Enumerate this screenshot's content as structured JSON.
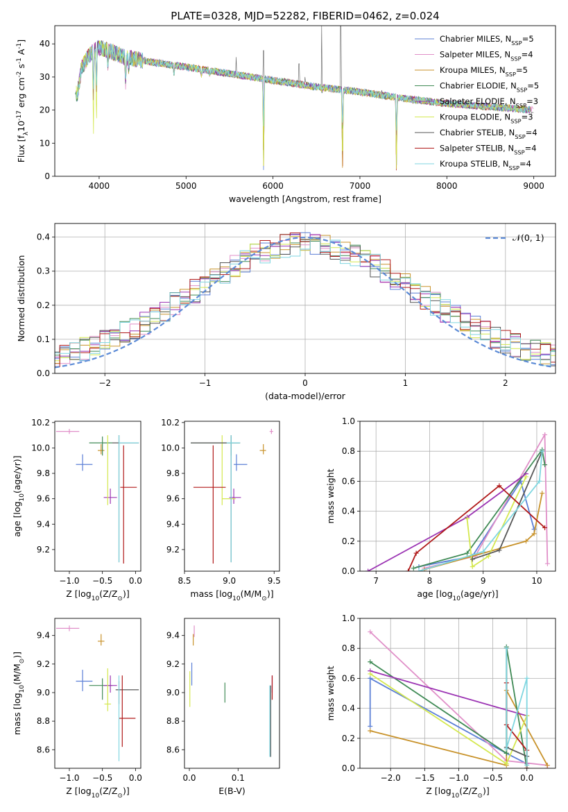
{
  "figure": {
    "title": "PLATE=0328, MJD=52282, FIBERID=0462, z=0.024"
  },
  "series_names": [
    "Chabrier MILES, N$_{SSP}$=5",
    "Salpeter MILES, N$_{SSP}$=4",
    "Kroupa MILES, N$_{SSP}$=5",
    "Chabrier ELODIE, N$_{SSP}$=5",
    "Salpeter ELODIE, N$_{SSP}$=3",
    "Kroupa ELODIE, N$_{SSP}$=3",
    "Chabrier STELIB, N$_{SSP}$=4",
    "Salpeter STELIB, N$_{SSP}$=4",
    "Kroupa STELIB, N$_{SSP}$=4"
  ],
  "series_colors": [
    "#5b7fd6",
    "#e08fc8",
    "#c8922a",
    "#3f8a55",
    "#9b33b3",
    "#d4e84e",
    "#555555",
    "#b01818",
    "#7fd6e0"
  ],
  "chart_data": [
    {
      "id": "spectrum",
      "type": "line",
      "title": "PLATE=0328, MJD=52282, FIBERID=0462, z=0.024",
      "xlabel": "wavelength [Angstrom, rest frame]",
      "ylabel": "Flux [f$_\\lambda$10$^{-17}$ erg cm$^{-2}$ s$^{-1}$ A$^{-1}$]",
      "xlim": [
        3490,
        9250
      ],
      "ylim": [
        0,
        45.5
      ],
      "xticks": [
        4000,
        5000,
        6000,
        7000,
        8000,
        9000
      ],
      "yticks": [
        0,
        10,
        20,
        30,
        40
      ],
      "legend": "top-right",
      "continuum": {
        "x": [
          3750,
          3800,
          3900,
          4000,
          4100,
          4300,
          4600,
          5000,
          5500,
          6000,
          6500,
          7000,
          7500,
          8000,
          8500,
          9000
        ],
        "y": [
          25,
          33,
          37,
          39,
          38,
          36,
          34.5,
          33,
          31,
          29,
          27,
          25.5,
          23.5,
          22,
          21,
          20
        ]
      },
      "absorption_lines": [
        {
          "x": 3934,
          "y": 10
        },
        {
          "x": 3969,
          "y": 12
        },
        {
          "x": 4101,
          "y": 28
        },
        {
          "x": 4304,
          "y": 18
        },
        {
          "x": 4341,
          "y": 27
        },
        {
          "x": 4861,
          "y": 27
        },
        {
          "x": 5176,
          "y": 28
        },
        {
          "x": 5270,
          "y": 29
        },
        {
          "x": 5892,
          "y": 0
        },
        {
          "x": 6563,
          "y": 24
        },
        {
          "x": 6800,
          "y": 0
        },
        {
          "x": 7420,
          "y": 0
        }
      ],
      "emission_spikes": [
        {
          "x": 5577,
          "y": 36
        },
        {
          "x": 5892,
          "y": 38
        },
        {
          "x": 6300,
          "y": 34
        },
        {
          "x": 6370,
          "y": 30
        },
        {
          "x": 6560,
          "y": 45.5
        },
        {
          "x": 6780,
          "y": 45.5
        },
        {
          "x": 7250,
          "y": 26
        },
        {
          "x": 7400,
          "y": 24
        }
      ]
    },
    {
      "id": "residuals",
      "type": "histogram",
      "xlabel": "(data-model)/error",
      "ylabel": "Normed distribution",
      "xlim": [
        -2.5,
        2.5
      ],
      "ylim": [
        0,
        0.44
      ],
      "xticks": [
        -2,
        -1,
        0,
        1,
        2
      ],
      "yticks": [
        0.0,
        0.1,
        0.2,
        0.3,
        0.4
      ],
      "bin_width": 0.1,
      "reference_curve": {
        "name": "$\\mathcal{N}(0,1)$",
        "mean": 0,
        "sigma": 1,
        "style": "dashed"
      },
      "grid": true
    },
    {
      "id": "age_vs_Z",
      "type": "errorbar",
      "xlabel": "Z [log$_{10}$(Z/Z$_\\odot$)]",
      "ylabel": "age  [log$_{10}$(age/yr)]",
      "xlim": [
        -1.22,
        0.08
      ],
      "ylim": [
        9.03,
        10.21
      ],
      "xticks": [
        -1,
        -0.5,
        0
      ],
      "yticks": [
        9.2,
        9.4,
        9.6,
        9.8,
        10.0,
        10.2
      ],
      "points": [
        {
          "series": 0,
          "x": -0.8,
          "y": 9.87,
          "xerr": [
            0.1,
            0.15
          ],
          "yerr": [
            0.05,
            0.08
          ]
        },
        {
          "series": 1,
          "x": -1.0,
          "y": 10.13,
          "xerr": [
            0.2,
            0.15
          ],
          "yerr": [
            0.02,
            0.02
          ]
        },
        {
          "series": 2,
          "x": -0.52,
          "y": 9.98,
          "xerr": [
            0.05,
            0.05
          ],
          "yerr": [
            0.03,
            0.05
          ]
        },
        {
          "series": 3,
          "x": -0.5,
          "y": 10.04,
          "xerr": [
            0.2,
            0.15
          ],
          "yerr": [
            0.1,
            0.05
          ]
        },
        {
          "series": 4,
          "x": -0.38,
          "y": 9.61,
          "xerr": [
            0.1,
            0.1
          ],
          "yerr": [
            0.05,
            0.07
          ]
        },
        {
          "series": 5,
          "x": -0.42,
          "y": 9.6,
          "xerr": [
            0.0,
            0.0
          ],
          "yerr": [
            0.05,
            0.5
          ]
        },
        {
          "series": 6,
          "x": -0.25,
          "y": 10.04,
          "xerr": [
            0.1,
            0.3
          ],
          "yerr": [
            0.94,
            0.06
          ]
        },
        {
          "series": 7,
          "x": -0.18,
          "y": 9.69,
          "xerr": [
            0.05,
            0.2
          ],
          "yerr": [
            0.6,
            0.33
          ]
        },
        {
          "series": 8,
          "x": -0.25,
          "y": 10.04,
          "xerr": [
            0.0,
            0.3
          ],
          "yerr": [
            0.94,
            0.06
          ]
        }
      ]
    },
    {
      "id": "age_vs_mass",
      "type": "errorbar",
      "xlabel": "mass [log$_{10}$(M/M$_\\odot$)]",
      "ylabel": "",
      "xlim": [
        8.5,
        9.56
      ],
      "ylim": [
        9.03,
        10.21
      ],
      "xticks": [
        8.5,
        9.0,
        9.5
      ],
      "yticks": [
        9.2,
        9.4,
        9.6,
        9.8,
        10.0,
        10.2
      ],
      "points": [
        {
          "series": 0,
          "x": 9.08,
          "y": 9.87,
          "xerr": [
            0.03,
            0.12
          ],
          "yerr": [
            0.05,
            0.08
          ]
        },
        {
          "series": 1,
          "x": 9.47,
          "y": 10.13,
          "xerr": [
            0.02,
            0.02
          ],
          "yerr": [
            0.02,
            0.02
          ]
        },
        {
          "series": 2,
          "x": 9.38,
          "y": 9.98,
          "xerr": [
            0.04,
            0.03
          ],
          "yerr": [
            0.03,
            0.05
          ]
        },
        {
          "series": 3,
          "x": 9.02,
          "y": 10.04,
          "xerr": [
            0.45,
            0.1
          ],
          "yerr": [
            0.1,
            0.05
          ]
        },
        {
          "series": 4,
          "x": 9.05,
          "y": 9.61,
          "xerr": [
            0.05,
            0.08
          ],
          "yerr": [
            0.05,
            0.07
          ]
        },
        {
          "series": 5,
          "x": 8.92,
          "y": 9.6,
          "xerr": [
            0.0,
            0.15
          ],
          "yerr": [
            0.05,
            0.5
          ]
        },
        {
          "series": 6,
          "x": 9.02,
          "y": 10.04,
          "xerr": [
            0.45,
            0.1
          ],
          "yerr": [
            0.94,
            0.06
          ]
        },
        {
          "series": 7,
          "x": 8.82,
          "y": 9.69,
          "xerr": [
            0.22,
            0.14
          ],
          "yerr": [
            0.6,
            0.33
          ]
        },
        {
          "series": 8,
          "x": 9.02,
          "y": 10.04,
          "xerr": [
            0.05,
            0.1
          ],
          "yerr": [
            0.94,
            0.06
          ]
        }
      ]
    },
    {
      "id": "weight_vs_age",
      "type": "line",
      "xlabel": "age  [log$_{10}$(age/yr)]",
      "ylabel": "mass weight",
      "xlim": [
        6.7,
        10.35
      ],
      "ylim": [
        0,
        1.0
      ],
      "xticks": [
        7,
        8,
        9,
        10
      ],
      "yticks": [
        0.0,
        0.2,
        0.4,
        0.6,
        0.8,
        1.0
      ],
      "grid": true,
      "series": [
        {
          "series": 0,
          "x": [
            7.8,
            8.8,
            9.7,
            9.95
          ],
          "y": [
            0.03,
            0.1,
            0.6,
            0.28
          ]
        },
        {
          "series": 1,
          "x": [
            7.9,
            8.85,
            10.15,
            10.2
          ],
          "y": [
            0.02,
            0.1,
            0.91,
            0.05
          ]
        },
        {
          "series": 2,
          "x": [
            7.9,
            9.8,
            9.95,
            10.1
          ],
          "y": [
            0.01,
            0.2,
            0.25,
            0.52
          ]
        },
        {
          "series": 3,
          "x": [
            7.7,
            8.7,
            10.1,
            10.15
          ],
          "y": [
            0.02,
            0.12,
            0.81,
            0.71
          ]
        },
        {
          "series": 4,
          "x": [
            6.85,
            8.7,
            9.8
          ],
          "y": [
            0.0,
            0.36,
            0.65
          ]
        },
        {
          "series": 5,
          "x": [
            8.7,
            8.8,
            9.1,
            9.8
          ],
          "y": [
            0.35,
            0.03,
            0.1,
            0.63
          ]
        },
        {
          "series": 6,
          "x": [
            8.8,
            9.3,
            10.1
          ],
          "y": [
            0.08,
            0.14,
            0.8
          ]
        },
        {
          "series": 7,
          "x": [
            7.6,
            7.75,
            9.3,
            10.15
          ],
          "y": [
            0.0,
            0.12,
            0.57,
            0.29
          ]
        },
        {
          "series": 8,
          "x": [
            7.8,
            9.0,
            10.05,
            10.1
          ],
          "y": [
            0.0,
            0.13,
            0.6,
            0.8
          ]
        }
      ]
    },
    {
      "id": "mass_vs_Z",
      "type": "errorbar",
      "xlabel": "Z [log$_{10}$(Z/Z$_\\odot$)]",
      "ylabel": "mass [log$_{10}$(M/M$_\\odot$)]",
      "xlim": [
        -1.22,
        0.08
      ],
      "ylim": [
        8.47,
        9.52
      ],
      "xticks": [
        -1,
        -0.5,
        0
      ],
      "yticks": [
        8.6,
        8.8,
        9.0,
        9.2,
        9.4
      ],
      "points": [
        {
          "series": 0,
          "x": -0.8,
          "y": 9.08,
          "xerr": [
            0.1,
            0.15
          ],
          "yerr": [
            0.07,
            0.08
          ]
        },
        {
          "series": 1,
          "x": -1.0,
          "y": 9.45,
          "xerr": [
            0.2,
            0.15
          ],
          "yerr": [
            0.02,
            0.02
          ]
        },
        {
          "series": 2,
          "x": -0.52,
          "y": 9.36,
          "xerr": [
            0.05,
            0.05
          ],
          "yerr": [
            0.03,
            0.05
          ]
        },
        {
          "series": 3,
          "x": -0.5,
          "y": 9.05,
          "xerr": [
            0.2,
            0.15
          ],
          "yerr": [
            0.1,
            0.05
          ]
        },
        {
          "series": 4,
          "x": -0.38,
          "y": 9.05,
          "xerr": [
            0.1,
            0.1
          ],
          "yerr": [
            0.05,
            0.07
          ]
        },
        {
          "series": 5,
          "x": -0.42,
          "y": 8.92,
          "xerr": [
            0.05,
            0.05
          ],
          "yerr": [
            0.05,
            0.25
          ]
        },
        {
          "series": 6,
          "x": -0.25,
          "y": 9.02,
          "xerr": [
            0.05,
            0.3
          ],
          "yerr": [
            0.1,
            0.06
          ]
        },
        {
          "series": 7,
          "x": -0.2,
          "y": 8.82,
          "xerr": [
            0.05,
            0.2
          ],
          "yerr": [
            0.2,
            0.3
          ]
        },
        {
          "series": 8,
          "x": -0.25,
          "y": 9.02,
          "xerr": [
            0.0,
            0.0
          ],
          "yerr": [
            0.5,
            0.1
          ]
        }
      ]
    },
    {
      "id": "mass_vs_EBV",
      "type": "errorbar",
      "xlabel": "E(B-V)",
      "ylabel": "",
      "xlim": [
        -0.01,
        0.185
      ],
      "ylim": [
        8.47,
        9.52
      ],
      "xticks": [
        0.0,
        0.1
      ],
      "yticks": [
        8.6,
        8.8,
        9.0,
        9.2,
        9.4
      ],
      "points": [
        {
          "series": 0,
          "x": 0.005,
          "y": 9.13,
          "xerr": [
            0,
            0
          ],
          "yerr": [
            0.08,
            0.08
          ]
        },
        {
          "series": 1,
          "x": 0.01,
          "y": 9.43,
          "xerr": [
            0,
            0
          ],
          "yerr": [
            0.04,
            0.04
          ]
        },
        {
          "series": 2,
          "x": 0.008,
          "y": 9.37,
          "xerr": [
            0,
            0
          ],
          "yerr": [
            0.04,
            0.04
          ]
        },
        {
          "series": 3,
          "x": 0.073,
          "y": 9.0,
          "xerr": [
            0,
            0
          ],
          "yerr": [
            0.07,
            0.07
          ]
        },
        {
          "series": 4,
          "x": 0.17,
          "y": 9.05,
          "xerr": [
            0,
            0
          ],
          "yerr": [
            0.05,
            0.07
          ]
        },
        {
          "series": 5,
          "x": 0.001,
          "y": 9.0,
          "xerr": [
            0,
            0
          ],
          "yerr": [
            0.1,
            0.15
          ]
        },
        {
          "series": 6,
          "x": 0.167,
          "y": 8.8,
          "xerr": [
            0,
            0
          ],
          "yerr": [
            0.25,
            0.25
          ]
        },
        {
          "series": 7,
          "x": 0.17,
          "y": 9.05,
          "xerr": [
            0,
            0
          ],
          "yerr": [
            0.1,
            0.07
          ]
        },
        {
          "series": 8,
          "x": 0.165,
          "y": 8.8,
          "xerr": [
            0,
            0
          ],
          "yerr": [
            0.25,
            0.25
          ]
        }
      ]
    },
    {
      "id": "weight_vs_Z",
      "type": "line",
      "xlabel": "Z [log$_{10}$(Z/Z$_\\odot$)]",
      "ylabel": "mass weight",
      "xlim": [
        -2.45,
        0.42
      ],
      "ylim": [
        0,
        1.0
      ],
      "xticks": [
        -2.0,
        -1.5,
        -1.0,
        -0.5,
        0.0
      ],
      "yticks": [
        0.0,
        0.2,
        0.4,
        0.6,
        0.8,
        1.0
      ],
      "grid": true,
      "series": [
        {
          "series": 0,
          "x": [
            -2.3,
            -2.3,
            -0.3,
            0.0
          ],
          "y": [
            0.28,
            0.6,
            0.1,
            0.03
          ]
        },
        {
          "series": 1,
          "x": [
            -2.3,
            -0.3,
            0.3,
            0.3
          ],
          "y": [
            0.91,
            0.05,
            0.02,
            0.0
          ]
        },
        {
          "series": 2,
          "x": [
            -2.3,
            -0.3,
            -0.3,
            0.3
          ],
          "y": [
            0.25,
            0.02,
            0.52,
            0.02
          ]
        },
        {
          "series": 3,
          "x": [
            -2.3,
            -0.3,
            -0.3,
            0.0
          ],
          "y": [
            0.71,
            0.1,
            0.81,
            0.0
          ]
        },
        {
          "series": 4,
          "x": [
            -2.3,
            0.0,
            0.0
          ],
          "y": [
            0.65,
            0.35,
            0.0
          ]
        },
        {
          "series": 5,
          "x": [
            -2.3,
            -0.3,
            0.0,
            0.0
          ],
          "y": [
            0.63,
            0.03,
            0.35,
            0.0
          ]
        },
        {
          "series": 6,
          "x": [
            -0.3,
            -0.3,
            0.0
          ],
          "y": [
            0.8,
            0.14,
            0.08
          ]
        },
        {
          "series": 7,
          "x": [
            -0.3,
            -0.3,
            0.0,
            0.0
          ],
          "y": [
            0.57,
            0.29,
            0.12,
            0.0
          ]
        },
        {
          "series": 8,
          "x": [
            -0.3,
            -0.3,
            0.0,
            0.0
          ],
          "y": [
            0.8,
            0.13,
            0.6,
            0.02
          ]
        }
      ]
    }
  ]
}
